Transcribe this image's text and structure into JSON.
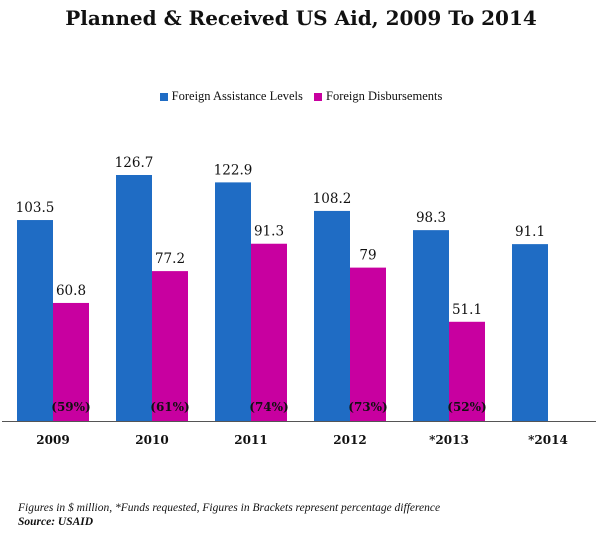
{
  "chart_data": {
    "type": "bar",
    "title": "Planned & Received US Aid, 2009 To 2014",
    "categories": [
      "2009",
      "2010",
      "2011",
      "2012",
      "*2013",
      "*2014"
    ],
    "series": [
      {
        "name": "Foreign Assistance  Levels",
        "color": "#1f6cc4",
        "values": [
          103.5,
          126.7,
          122.9,
          108.2,
          98.3,
          91.1
        ],
        "labels": [
          "103.5",
          "126.7",
          "122.9",
          "108.2",
          "98.3",
          "91.1"
        ]
      },
      {
        "name": "Foreign Disbursements",
        "color": "#c800a0",
        "values": [
          60.8,
          77.2,
          91.3,
          79,
          51.1,
          null
        ],
        "labels": [
          "60.8",
          "77.2",
          "91.3",
          "79",
          "51.1",
          ""
        ]
      }
    ],
    "percent_labels": [
      "(59%)",
      "(61%)",
      "(74%)",
      "(73%)",
      "(52%)",
      ""
    ],
    "ylim": [
      0,
      160
    ],
    "grid": false,
    "legend_position": "top"
  },
  "footnote": "Figures in $ million, *Funds requested, Figures in Brackets represent percentage difference",
  "source": "Source: USAID"
}
